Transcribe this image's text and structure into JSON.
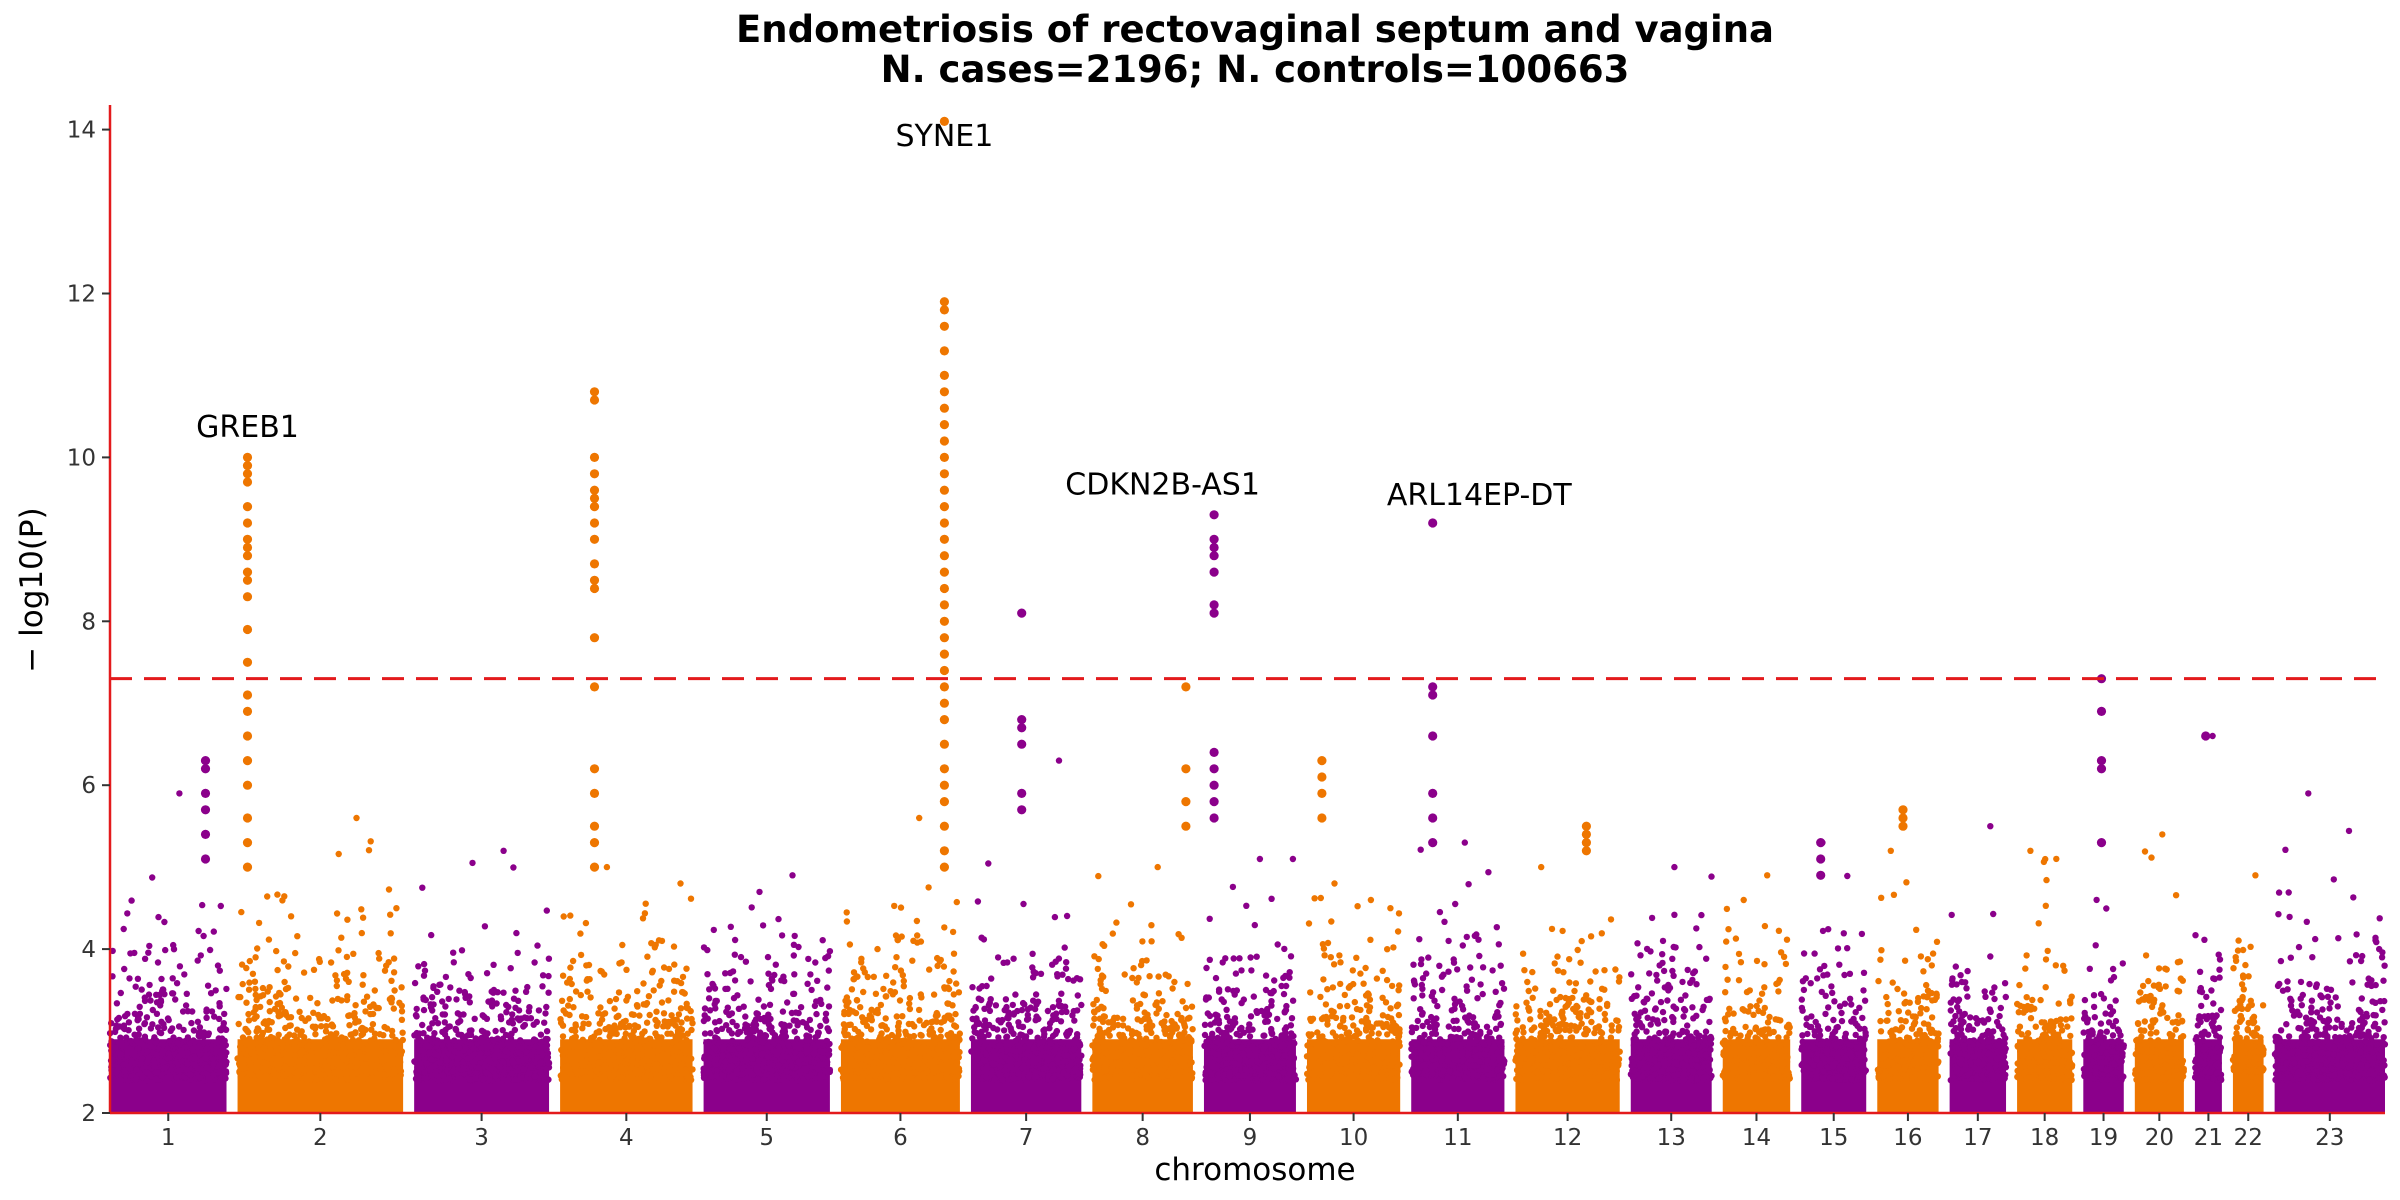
{
  "chart_data": {
    "type": "scatter",
    "title": "Endometriosis of rectovaginal septum and vagina",
    "subtitle": "N. cases=2196; N. controls=100663",
    "xlabel": "chromosome",
    "ylabel": "− log10(P)",
    "ylim": [
      2,
      14.3
    ],
    "yticks": [
      2,
      4,
      6,
      8,
      10,
      12,
      14
    ],
    "significance_line": 7.3,
    "colors": {
      "odd": "#8B008B",
      "even": "#EE7600",
      "axis": "#E31A1C",
      "threshold": "#E31A1C"
    },
    "chromosomes": [
      {
        "label": "1",
        "width": 0.95,
        "color": "#8B008B"
      },
      {
        "label": "2",
        "width": 1.35,
        "color": "#EE7600"
      },
      {
        "label": "3",
        "width": 1.1,
        "color": "#8B008B"
      },
      {
        "label": "4",
        "width": 1.08,
        "color": "#EE7600"
      },
      {
        "label": "5",
        "width": 1.03,
        "color": "#8B008B"
      },
      {
        "label": "6",
        "width": 0.97,
        "color": "#EE7600"
      },
      {
        "label": "7",
        "width": 0.9,
        "color": "#8B008B"
      },
      {
        "label": "8",
        "width": 0.82,
        "color": "#EE7600"
      },
      {
        "label": "9",
        "width": 0.75,
        "color": "#8B008B"
      },
      {
        "label": "10",
        "width": 0.76,
        "color": "#EE7600"
      },
      {
        "label": "11",
        "width": 0.76,
        "color": "#8B008B"
      },
      {
        "label": "12",
        "width": 0.85,
        "color": "#EE7600"
      },
      {
        "label": "13",
        "width": 0.66,
        "color": "#8B008B"
      },
      {
        "label": "14",
        "width": 0.55,
        "color": "#EE7600"
      },
      {
        "label": "15",
        "width": 0.53,
        "color": "#8B008B"
      },
      {
        "label": "16",
        "width": 0.5,
        "color": "#EE7600"
      },
      {
        "label": "17",
        "width": 0.46,
        "color": "#8B008B"
      },
      {
        "label": "18",
        "width": 0.45,
        "color": "#EE7600"
      },
      {
        "label": "19",
        "width": 0.33,
        "color": "#8B008B"
      },
      {
        "label": "20",
        "width": 0.4,
        "color": "#EE7600"
      },
      {
        "label": "21",
        "width": 0.22,
        "color": "#8B008B"
      },
      {
        "label": "22",
        "width": 0.25,
        "color": "#EE7600"
      },
      {
        "label": "23",
        "width": 0.9,
        "color": "#8B008B"
      }
    ],
    "background_max": [
      5.9,
      5.6,
      5.2,
      5.0,
      4.9,
      5.6,
      6.3,
      5.0,
      5.1,
      4.8,
      5.3,
      5.0,
      5.0,
      4.9,
      5.3,
      5.2,
      5.5,
      5.2,
      4.6,
      5.4,
      6.6,
      4.9,
      5.9
    ],
    "peaks": [
      {
        "chr": "1",
        "pos": 0.82,
        "values": [
          6.3,
          6.2,
          5.9,
          5.7,
          5.4,
          5.1
        ]
      },
      {
        "chr": "2",
        "pos": 0.06,
        "values": [
          10.0,
          9.9,
          9.8,
          9.7,
          9.4,
          9.2,
          9.0,
          8.9,
          8.8,
          8.6,
          8.5,
          8.3,
          7.9,
          7.5,
          7.1,
          6.9,
          6.6,
          6.3,
          6.0,
          5.6,
          5.3,
          5.0
        ]
      },
      {
        "chr": "4",
        "pos": 0.26,
        "values": [
          10.8,
          10.7,
          10.0,
          9.8,
          9.6,
          9.5,
          9.4,
          9.2,
          9.0,
          8.7,
          8.5,
          8.4,
          7.8,
          7.2,
          6.2,
          5.9,
          5.5,
          5.3,
          5.0
        ]
      },
      {
        "chr": "6",
        "pos": 0.87,
        "values": [
          14.1,
          11.9,
          11.8,
          11.6,
          11.3,
          11.0,
          10.8,
          10.6,
          10.4,
          10.2,
          10.0,
          9.8,
          9.6,
          9.4,
          9.2,
          9.0,
          8.8,
          8.6,
          8.4,
          8.2,
          8.0,
          7.8,
          7.6,
          7.4,
          7.2,
          7.0,
          6.8,
          6.5,
          6.2,
          6.0,
          5.8,
          5.5,
          5.2,
          5.0
        ]
      },
      {
        "chr": "7",
        "pos": 0.46,
        "values": [
          8.1,
          6.8,
          6.7,
          6.5,
          5.9,
          5.7
        ]
      },
      {
        "chr": "8",
        "pos": 0.93,
        "values": [
          7.2,
          6.2,
          5.8,
          5.5
        ]
      },
      {
        "chr": "9",
        "pos": 0.11,
        "values": [
          9.3,
          9.0,
          8.9,
          8.8,
          8.6,
          8.2,
          8.1,
          6.4,
          6.2,
          6.0,
          5.8,
          5.6
        ]
      },
      {
        "chr": "10",
        "pos": 0.16,
        "values": [
          6.3,
          6.1,
          5.9,
          5.6
        ]
      },
      {
        "chr": "11",
        "pos": 0.23,
        "values": [
          9.2,
          7.2,
          7.1,
          6.6,
          5.9,
          5.6,
          5.3
        ]
      },
      {
        "chr": "12",
        "pos": 0.68,
        "values": [
          5.5,
          5.4,
          5.3,
          5.2
        ]
      },
      {
        "chr": "15",
        "pos": 0.3,
        "values": [
          5.3,
          5.1,
          4.9
        ]
      },
      {
        "chr": "16",
        "pos": 0.42,
        "values": [
          5.7,
          5.6,
          5.5
        ]
      },
      {
        "chr": "19",
        "pos": 0.45,
        "values": [
          7.3,
          6.9,
          6.3,
          6.2,
          5.3
        ]
      },
      {
        "chr": "21",
        "pos": 0.4,
        "values": [
          6.6
        ]
      }
    ],
    "annotations": [
      {
        "text": "GREB1",
        "chr": "2",
        "pos": 0.06,
        "y": 10.25
      },
      {
        "text": "SYNE1",
        "chr": "6",
        "pos": 0.87,
        "y": 13.8
      },
      {
        "text": "CDKN2B-AS1",
        "chr": "9",
        "pos": -0.45,
        "y": 9.55
      },
      {
        "text": "ARL14EP-DT",
        "chr": "11",
        "pos": 0.73,
        "y": 9.42
      }
    ]
  }
}
